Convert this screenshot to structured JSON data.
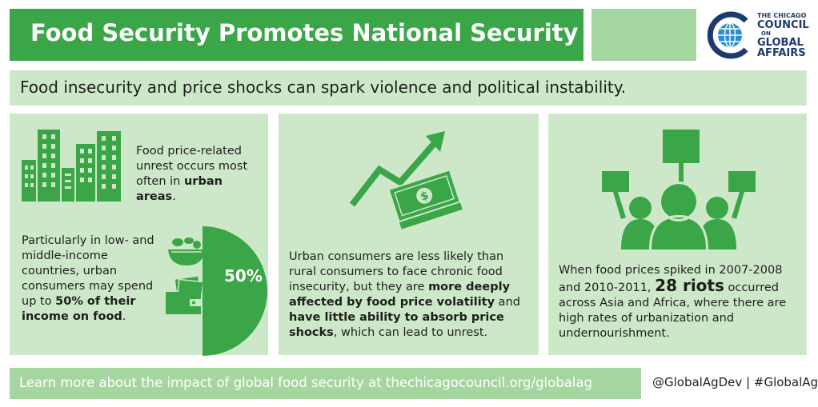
{
  "header": {
    "title": "Food Security Promotes National Security",
    "logo": {
      "line1": "THE CHICAGO",
      "line2": "COUNCIL",
      "line3": "ON",
      "line4": "GLOBAL",
      "line5": "AFFAIRS"
    }
  },
  "subtitle": "Food insecurity and price shocks can spark violence and political instability.",
  "panel1": {
    "text1_before": "Food price-related unrest occurs most often in ",
    "text1_bold": "urban areas",
    "text1_after": ".",
    "text2_before": "Particularly in low- and middle-income countries, urban consumers may spend up to ",
    "text2_bold": "50% of their income on food",
    "text2_after": ".",
    "percent_label": "50%",
    "percent_value": 50,
    "icons": [
      "city-buildings-icon",
      "food-bowl-icon",
      "wallet-money-icon"
    ]
  },
  "panel2": {
    "part1": "Urban consumers are less likely than rural consumers to face chronic food insecurity, but they are ",
    "bold1": "more deeply affected by food price volatility",
    "part2": " and ",
    "bold2": "have little ability to absorb price shocks",
    "part3": ", which can lead to unrest.",
    "icons": [
      "trend-arrow-icon",
      "money-bills-icon"
    ]
  },
  "panel3": {
    "part1": "When food prices spiked in 2007-2008 and 2010-2011, ",
    "bold1": "28 riots",
    "part2": " occurred across Asia and Africa, where there are high rates of urbanization and undernourishment.",
    "icons": [
      "protesters-signs-icon"
    ]
  },
  "footer": {
    "text": "Learn more about the impact of global food security at thechicagocouncil.org/globalag",
    "social": "@GlobalAgDev | #GlobalAg"
  },
  "colors": {
    "green": "#3aa647",
    "light_green": "#cde8c8",
    "mid_green": "#a5d6a0",
    "navy": "#1d3a6d",
    "blue": "#2a8fd0"
  }
}
